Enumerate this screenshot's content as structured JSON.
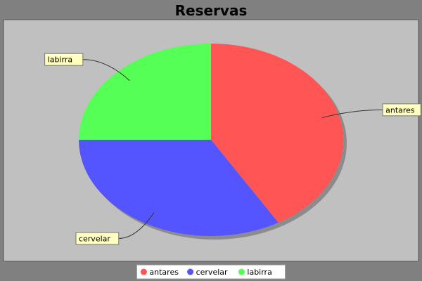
{
  "chart_data": {
    "type": "pie",
    "title": "Reservas",
    "categories": [
      "antares",
      "cervelar",
      "labirra"
    ],
    "values": [
      41.5,
      33.5,
      25.0
    ],
    "colors": [
      "#ff5555",
      "#5555ff",
      "#55ff55"
    ],
    "legend_position": "bottom",
    "plot_background": "#c0c0c0",
    "outer_background": "#808080"
  }
}
